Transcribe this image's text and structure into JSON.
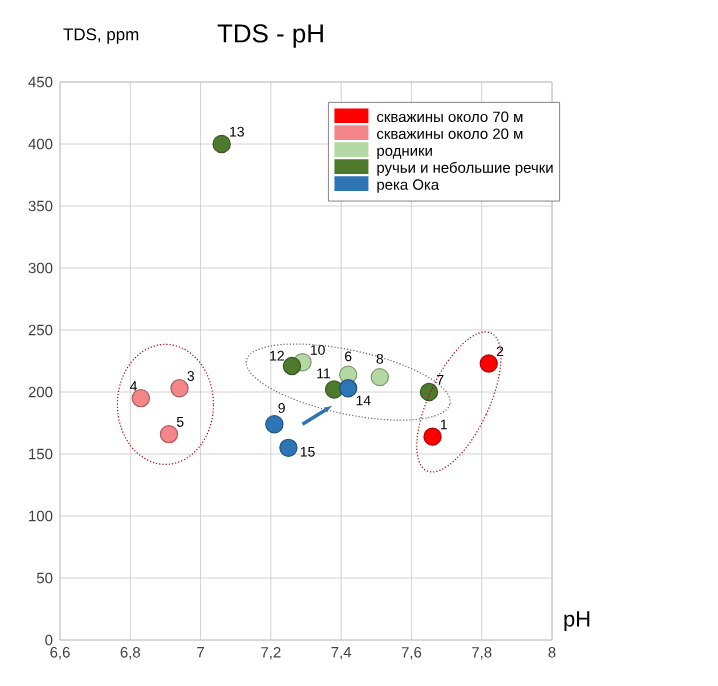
{
  "chart_data": {
    "type": "scatter",
    "title": "TDS - pH",
    "xlabel": "pH",
    "ylabel": "TDS, ppm",
    "xlim": [
      6.6,
      8
    ],
    "ylim": [
      0,
      450
    ],
    "xticks": [
      {
        "value": 6.6,
        "label": "6,6"
      },
      {
        "value": 6.8,
        "label": "6,8"
      },
      7,
      {
        "value": 7.2,
        "label": "7,2"
      },
      {
        "value": 7.4,
        "label": "7,4"
      },
      {
        "value": 7.6,
        "label": "7,6"
      },
      {
        "value": 7.8,
        "label": "7,8"
      },
      8
    ],
    "yticks": [
      0,
      50,
      100,
      150,
      200,
      250,
      300,
      350,
      400,
      450
    ],
    "grid": true,
    "legend": "top right",
    "series": [
      {
        "name": "скважины около 70 м",
        "color": "#ff0000",
        "x": [
          7.66,
          7.82
        ],
        "values": [
          164,
          223
        ]
      },
      {
        "name": "скважины около 20 м",
        "color": "#f4868a",
        "x": [
          6.94,
          6.83,
          6.91
        ],
        "values": [
          203,
          195,
          166
        ]
      },
      {
        "name": "родники",
        "color": "#b5d9a4",
        "x": [
          7.42,
          7.51,
          7.29
        ],
        "values": [
          214,
          212,
          224
        ]
      },
      {
        "name": "ручьи и небольшие речки",
        "color": "#4e7a2e",
        "x": [
          7.65,
          7.38,
          7.26,
          7.06
        ],
        "values": [
          200,
          202,
          221,
          400
        ]
      },
      {
        "name": "река Ока",
        "color": "#2e75b6",
        "x": [
          7.21,
          7.42,
          7.25
        ],
        "values": [
          174,
          203,
          155
        ]
      }
    ],
    "annotations": [
      {
        "text": "1",
        "x": 7.66,
        "y": 164
      },
      {
        "text": "2",
        "x": 7.82,
        "y": 223
      },
      {
        "text": "3",
        "x": 6.94,
        "y": 203
      },
      {
        "text": "4",
        "x": 6.83,
        "y": 195
      },
      {
        "text": "5",
        "x": 6.91,
        "y": 166
      },
      {
        "text": "6",
        "x": 7.42,
        "y": 214
      },
      {
        "text": "7",
        "x": 7.65,
        "y": 200
      },
      {
        "text": "8",
        "x": 7.51,
        "y": 212
      },
      {
        "text": "9",
        "x": 7.21,
        "y": 174
      },
      {
        "text": "10",
        "x": 7.29,
        "y": 224
      },
      {
        "text": "11",
        "x": 7.38,
        "y": 202
      },
      {
        "text": "12",
        "x": 7.26,
        "y": 221
      },
      {
        "text": "13",
        "x": 7.06,
        "y": 400
      },
      {
        "text": "14",
        "x": 7.42,
        "y": 203
      },
      {
        "text": "15",
        "x": 7.25,
        "y": 155
      }
    ]
  }
}
